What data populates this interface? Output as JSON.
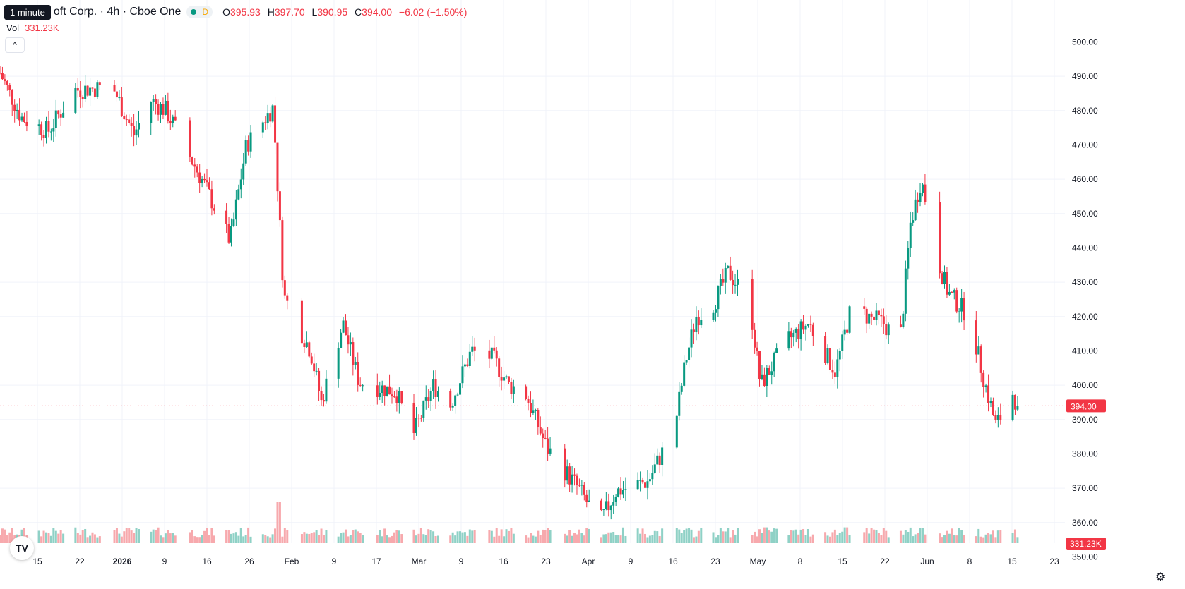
{
  "legend": {
    "tooltip": "1 minute",
    "symbol": "oft Corp. · 4h · Cboe One",
    "market_badge": "D",
    "open_label": "O",
    "open": "395.93",
    "high_label": "H",
    "high": "397.70",
    "low_label": "L",
    "low": "390.95",
    "close_label": "C",
    "close": "394.00",
    "change": "−6.02 (−1.50%)"
  },
  "volume": {
    "label": "Vol",
    "value": "331.23K"
  },
  "price_axis": {
    "ticks": [
      "500.00",
      "490.00",
      "480.00",
      "470.00",
      "460.00",
      "450.00",
      "440.00",
      "430.00",
      "420.00",
      "410.00",
      "400.00",
      "390.00",
      "380.00",
      "370.00",
      "360.00",
      "350.00"
    ],
    "last_price_label": "394.00",
    "last_volume_label": "331.23K"
  },
  "time_axis": {
    "ticks": [
      {
        "label": "15",
        "bold": false
      },
      {
        "label": "22",
        "bold": false
      },
      {
        "label": "2026",
        "bold": true
      },
      {
        "label": "9",
        "bold": false
      },
      {
        "label": "16",
        "bold": false
      },
      {
        "label": "26",
        "bold": false
      },
      {
        "label": "Feb",
        "bold": false
      },
      {
        "label": "9",
        "bold": false
      },
      {
        "label": "17",
        "bold": false
      },
      {
        "label": "Mar",
        "bold": false
      },
      {
        "label": "9",
        "bold": false
      },
      {
        "label": "16",
        "bold": false
      },
      {
        "label": "23",
        "bold": false
      },
      {
        "label": "Apr",
        "bold": false
      },
      {
        "label": "9",
        "bold": false
      },
      {
        "label": "16",
        "bold": false
      },
      {
        "label": "23",
        "bold": false
      },
      {
        "label": "May",
        "bold": false
      },
      {
        "label": "8",
        "bold": false
      },
      {
        "label": "15",
        "bold": false
      },
      {
        "label": "22",
        "bold": false
      },
      {
        "label": "Jun",
        "bold": false
      },
      {
        "label": "8",
        "bold": false
      },
      {
        "label": "15",
        "bold": false
      },
      {
        "label": "23",
        "bold": false
      }
    ]
  },
  "colors": {
    "up": "#089981",
    "down": "#f23645",
    "up_volume": "#8fd1c6",
    "down_volume": "#f7a9ad",
    "grid": "#f0f3fa",
    "text": "#131722"
  },
  "icons": {
    "logo": "tradingview-logo-icon",
    "settings": "gear-icon",
    "collapse": "chevron-up-icon"
  },
  "chart_data": {
    "type": "candlestick",
    "interval": "4h",
    "ylim": [
      354,
      504
    ],
    "last_price": 394.0,
    "x_range_dates": [
      "2025-12-08",
      "2026-06-23"
    ],
    "anchors": [
      {
        "date": "2025-12-08",
        "price": 491
      },
      {
        "date": "2025-12-12",
        "price": 478
      },
      {
        "date": "2025-12-17",
        "price": 474
      },
      {
        "date": "2025-12-22",
        "price": 486
      },
      {
        "date": "2025-12-29",
        "price": 487
      },
      {
        "date": "2026-01-02",
        "price": 473
      },
      {
        "date": "2026-01-05",
        "price": 483
      },
      {
        "date": "2026-01-08",
        "price": 480
      },
      {
        "date": "2026-01-12",
        "price": 468
      },
      {
        "date": "2026-01-15",
        "price": 459
      },
      {
        "date": "2026-01-20",
        "price": 442
      },
      {
        "date": "2026-01-23",
        "price": 470
      },
      {
        "date": "2026-01-28",
        "price": 481
      },
      {
        "date": "2026-01-30",
        "price": 426
      },
      {
        "date": "2026-02-04",
        "price": 410
      },
      {
        "date": "2026-02-06",
        "price": 395
      },
      {
        "date": "2026-02-10",
        "price": 418
      },
      {
        "date": "2026-02-13",
        "price": 401
      },
      {
        "date": "2026-02-20",
        "price": 398
      },
      {
        "date": "2026-02-23",
        "price": 385
      },
      {
        "date": "2026-02-27",
        "price": 400
      },
      {
        "date": "2026-03-02",
        "price": 394
      },
      {
        "date": "2026-03-06",
        "price": 410
      },
      {
        "date": "2026-03-10",
        "price": 408
      },
      {
        "date": "2026-03-13",
        "price": 400
      },
      {
        "date": "2026-03-16",
        "price": 398
      },
      {
        "date": "2026-03-20",
        "price": 382
      },
      {
        "date": "2026-03-26",
        "price": 370
      },
      {
        "date": "2026-03-30",
        "price": 360
      },
      {
        "date": "2026-04-02",
        "price": 369
      },
      {
        "date": "2026-04-08",
        "price": 372
      },
      {
        "date": "2026-04-13",
        "price": 388
      },
      {
        "date": "2026-04-15",
        "price": 407
      },
      {
        "date": "2026-04-17",
        "price": 420
      },
      {
        "date": "2026-04-20",
        "price": 423
      },
      {
        "date": "2026-04-23",
        "price": 433
      },
      {
        "date": "2026-04-27",
        "price": 424
      },
      {
        "date": "2026-04-29",
        "price": 400
      },
      {
        "date": "2026-05-04",
        "price": 413
      },
      {
        "date": "2026-05-08",
        "price": 418
      },
      {
        "date": "2026-05-13",
        "price": 404
      },
      {
        "date": "2026-05-16",
        "price": 423
      },
      {
        "date": "2026-05-19",
        "price": 420
      },
      {
        "date": "2026-05-22",
        "price": 418
      },
      {
        "date": "2026-05-25",
        "price": 412
      },
      {
        "date": "2026-05-27",
        "price": 447
      },
      {
        "date": "2026-05-29",
        "price": 460
      },
      {
        "date": "2026-06-01",
        "price": 437
      },
      {
        "date": "2026-06-03",
        "price": 427
      },
      {
        "date": "2026-06-07",
        "price": 420
      },
      {
        "date": "2026-06-10",
        "price": 400
      },
      {
        "date": "2026-06-12",
        "price": 388
      },
      {
        "date": "2026-06-15",
        "price": 398
      },
      {
        "date": "2026-06-16",
        "price": 394
      }
    ],
    "volume_spikes": [
      {
        "date": "2026-01-29",
        "value": 4.2
      },
      {
        "date": "2026-04-30",
        "value": 1.6
      },
      {
        "date": "2026-05-15",
        "value": 1.6
      },
      {
        "date": "2026-05-29",
        "value": 1.5
      }
    ]
  }
}
